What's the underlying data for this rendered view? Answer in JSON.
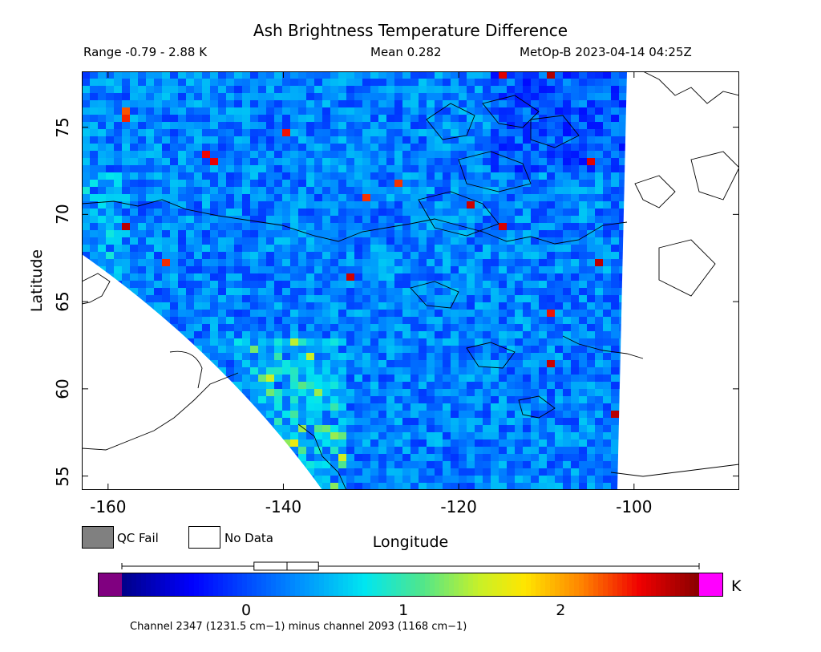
{
  "title": "Ash Brightness Temperature Difference",
  "stats": {
    "range": "Range -0.79 - 2.88 K",
    "mean": "Mean 0.282",
    "satellite": "MetOp-B 2023-04-14 04:25Z"
  },
  "axes": {
    "xlabel": "Longitude",
    "ylabel": "Latitude",
    "xlim": [
      -163,
      -88
    ],
    "ylim": [
      54.2,
      78.2
    ],
    "xticks": [
      "-160",
      "-140",
      "-120",
      "-100"
    ],
    "xtick_values": [
      -160,
      -140,
      -120,
      -100
    ],
    "yticks": [
      "55",
      "60",
      "65",
      "70",
      "75"
    ],
    "ytick_values": [
      55,
      60,
      65,
      70,
      75
    ]
  },
  "legend": {
    "qc_fail": "QC Fail",
    "no_data": "No Data",
    "qc_fail_color": "#808080",
    "no_data_color": "#ffffff"
  },
  "colorbar": {
    "unit": "K",
    "min": -0.79,
    "max": 2.88,
    "under_color": "#800080",
    "over_color": "#ff00ff",
    "ticks": [
      "0",
      "1",
      "2"
    ],
    "tick_values": [
      0,
      1,
      2
    ],
    "caption": "Channel 2347 (1231.5 cm−1) minus channel 2093 (1168 cm−1)"
  },
  "boxplot": {
    "min": -0.79,
    "q1": 0.05,
    "median": 0.26,
    "q3": 0.46,
    "max": 2.88
  },
  "chart_data": {
    "type": "heatmap",
    "title": "Ash Brightness Temperature Difference",
    "xlabel": "Longitude",
    "ylabel": "Latitude",
    "xlim": [
      -163,
      -88
    ],
    "ylim": [
      54.2,
      78.2
    ],
    "value_range": [
      -0.79,
      2.88
    ],
    "mean": 0.282,
    "grid": false,
    "colormap": "rainbow"
  }
}
